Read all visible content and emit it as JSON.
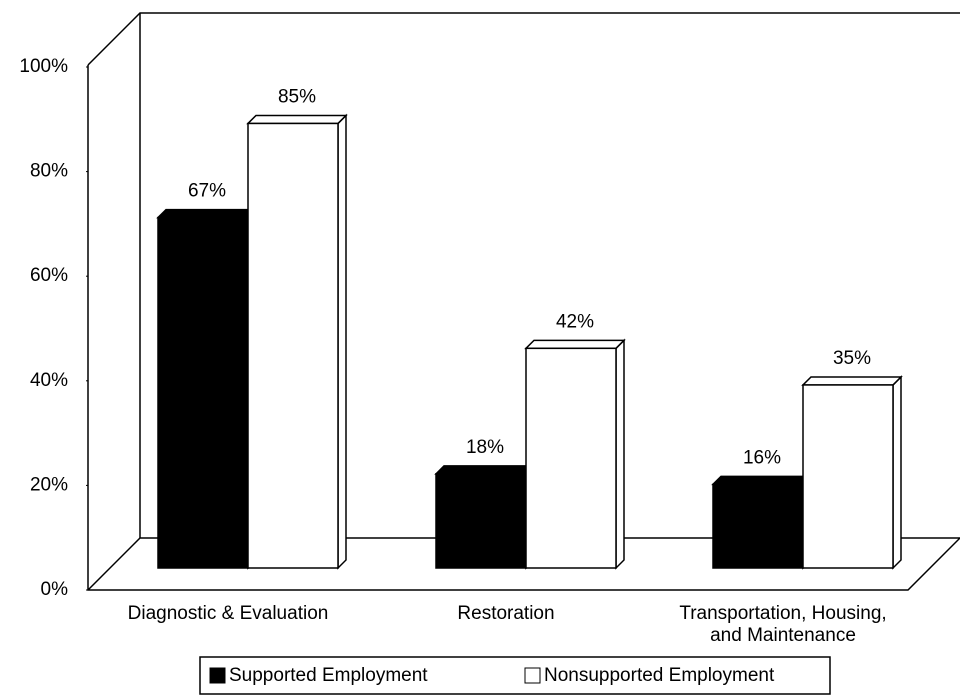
{
  "chart_data": {
    "type": "bar",
    "categories": [
      "Diagnostic & Evaluation",
      "Restoration",
      "Transportation, Housing, and Maintenance"
    ],
    "series": [
      {
        "name": "Supported Employment",
        "color": "#000000",
        "values": [
          67,
          18,
          16
        ],
        "value_labels": [
          "67%",
          "18%",
          "16%"
        ]
      },
      {
        "name": "Nonsupported Employment",
        "color": "#ffffff",
        "values": [
          85,
          42,
          35
        ],
        "value_labels": [
          "85%",
          "42%",
          "35%"
        ]
      }
    ],
    "ylim": [
      0,
      100
    ],
    "yticks": [
      {
        "value": 0,
        "label": "0%"
      },
      {
        "value": 20,
        "label": "20%"
      },
      {
        "value": 40,
        "label": "40%"
      },
      {
        "value": 60,
        "label": "60%"
      },
      {
        "value": 80,
        "label": "80%"
      },
      {
        "value": 100,
        "label": "100%"
      }
    ],
    "legend": "bottom"
  }
}
